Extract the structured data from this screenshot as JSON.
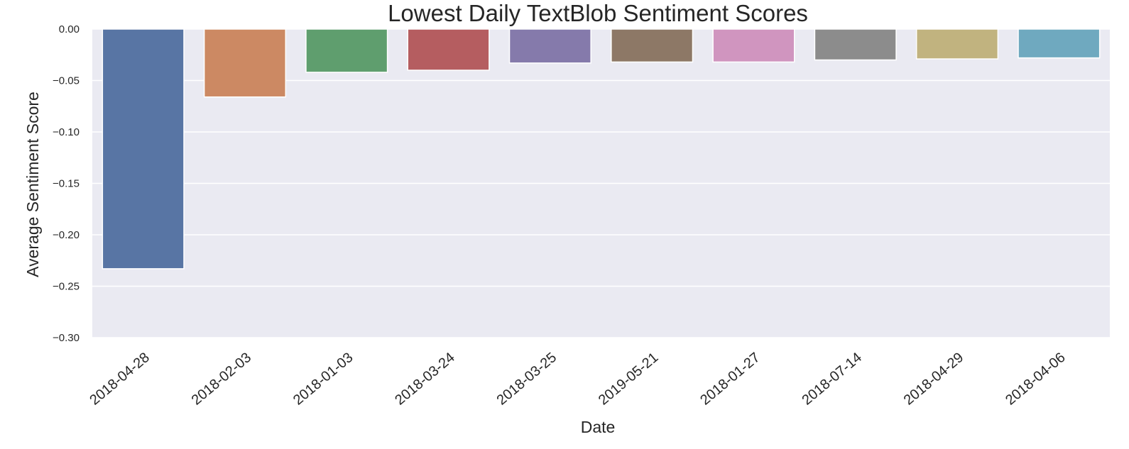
{
  "chart_data": {
    "type": "bar",
    "title": "Lowest Daily TextBlob Sentiment Scores",
    "xlabel": "Date",
    "ylabel": "Average Sentiment Score",
    "categories": [
      "2018-04-28",
      "2018-02-03",
      "2018-01-03",
      "2018-03-24",
      "2018-03-25",
      "2019-05-21",
      "2018-01-27",
      "2018-07-14",
      "2018-04-29",
      "2018-04-06"
    ],
    "values": [
      -0.233,
      -0.066,
      -0.042,
      -0.04,
      -0.033,
      -0.032,
      -0.032,
      -0.03,
      -0.029,
      -0.028
    ],
    "colors": [
      "#5875a4",
      "#cc8963",
      "#5f9e6e",
      "#b55d60",
      "#857aab",
      "#8d7866",
      "#d095bf",
      "#8c8c8c",
      "#c1b37f",
      "#6fa9bf"
    ],
    "ylim": [
      -0.3,
      0.0
    ],
    "yticks": [
      "0.00",
      "−0.05",
      "−0.10",
      "−0.15",
      "−0.20",
      "−0.25",
      "−0.30"
    ],
    "grid": true,
    "style": {
      "plot_background": "#eaeaf2",
      "grid_color": "#ffffff"
    }
  }
}
